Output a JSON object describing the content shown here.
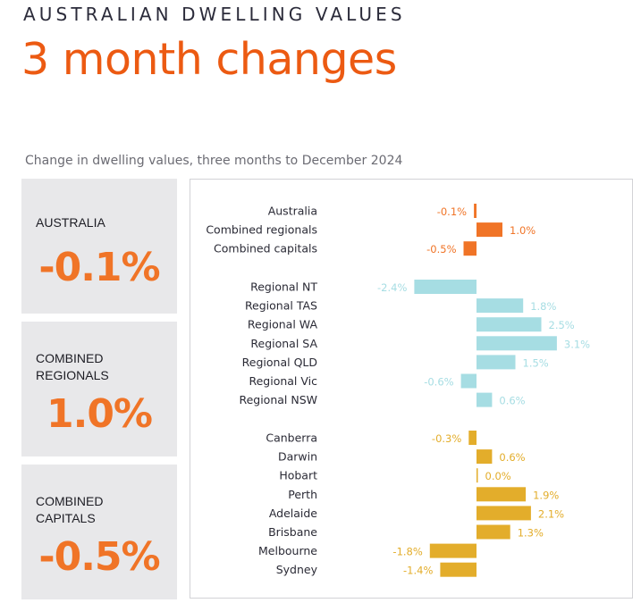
{
  "header": {
    "kicker": "AUSTRALIAN DWELLING VALUES",
    "title": "3 month changes",
    "subtitle": "Change in dwelling values, three months to December 2024"
  },
  "cards": [
    {
      "label": "AUSTRALIA",
      "value": "-0.1%"
    },
    {
      "label": "COMBINED\nREGIONALS",
      "value": "1.0%"
    },
    {
      "label": "COMBINED\nCAPITALS",
      "value": "-0.5%"
    }
  ],
  "colors": {
    "headline": "#ec5a12",
    "card_value": "#f07427",
    "card_bg": "#e8e8ea",
    "group_summary": "#f07427",
    "group_regional": "#a6dde3",
    "group_capitals": "#e3ad2b"
  },
  "chart_data": {
    "type": "bar",
    "orientation": "horizontal",
    "unit": "%",
    "xlim": [
      -2.5,
      3.2
    ],
    "grid": false,
    "legend": "none",
    "groups": [
      {
        "color": "#f07427",
        "items": [
          {
            "category": "Australia",
            "value": -0.1,
            "label": "-0.1%"
          },
          {
            "category": "Combined regionals",
            "value": 1.0,
            "label": "1.0%"
          },
          {
            "category": "Combined capitals",
            "value": -0.5,
            "label": "-0.5%"
          }
        ]
      },
      {
        "color": "#a6dde3",
        "items": [
          {
            "category": "Regional NT",
            "value": -2.4,
            "label": "-2.4%"
          },
          {
            "category": "Regional TAS",
            "value": 1.8,
            "label": "1.8%"
          },
          {
            "category": "Regional WA",
            "value": 2.5,
            "label": "2.5%"
          },
          {
            "category": "Regional SA",
            "value": 3.1,
            "label": "3.1%"
          },
          {
            "category": "Regional QLD",
            "value": 1.5,
            "label": "1.5%"
          },
          {
            "category": "Regional Vic",
            "value": -0.6,
            "label": "-0.6%"
          },
          {
            "category": "Regional NSW",
            "value": 0.6,
            "label": "0.6%"
          }
        ]
      },
      {
        "color": "#e3ad2b",
        "items": [
          {
            "category": "Canberra",
            "value": -0.3,
            "label": "-0.3%"
          },
          {
            "category": "Darwin",
            "value": 0.6,
            "label": "0.6%"
          },
          {
            "category": "Hobart",
            "value": 0.0,
            "label": "0.0%"
          },
          {
            "category": "Perth",
            "value": 1.9,
            "label": "1.9%"
          },
          {
            "category": "Adelaide",
            "value": 2.1,
            "label": "2.1%"
          },
          {
            "category": "Brisbane",
            "value": 1.3,
            "label": "1.3%"
          },
          {
            "category": "Melbourne",
            "value": -1.8,
            "label": "-1.8%"
          },
          {
            "category": "Sydney",
            "value": -1.4,
            "label": "-1.4%"
          }
        ]
      }
    ]
  }
}
